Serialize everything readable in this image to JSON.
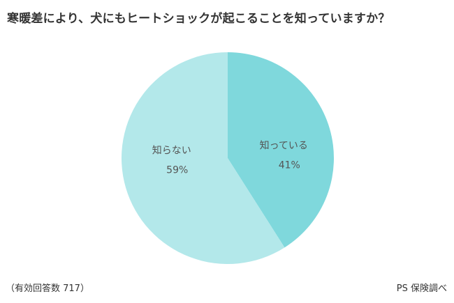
{
  "title": "寒暖差により、犬にもヒートショックが起こることを知っていますか？",
  "chart_data": {
    "type": "pie",
    "slices": [
      {
        "label": "知っている",
        "value": 41,
        "value_label": "41%",
        "color": "#7fd8dc"
      },
      {
        "label": "知らない",
        "value": 59,
        "value_label": "59%",
        "color": "#b3e8ea"
      }
    ],
    "start": "12 o'clock",
    "direction": "clockwise"
  },
  "footer": {
    "note": "（有効回答数 717）",
    "source": "PS 保険調べ"
  }
}
